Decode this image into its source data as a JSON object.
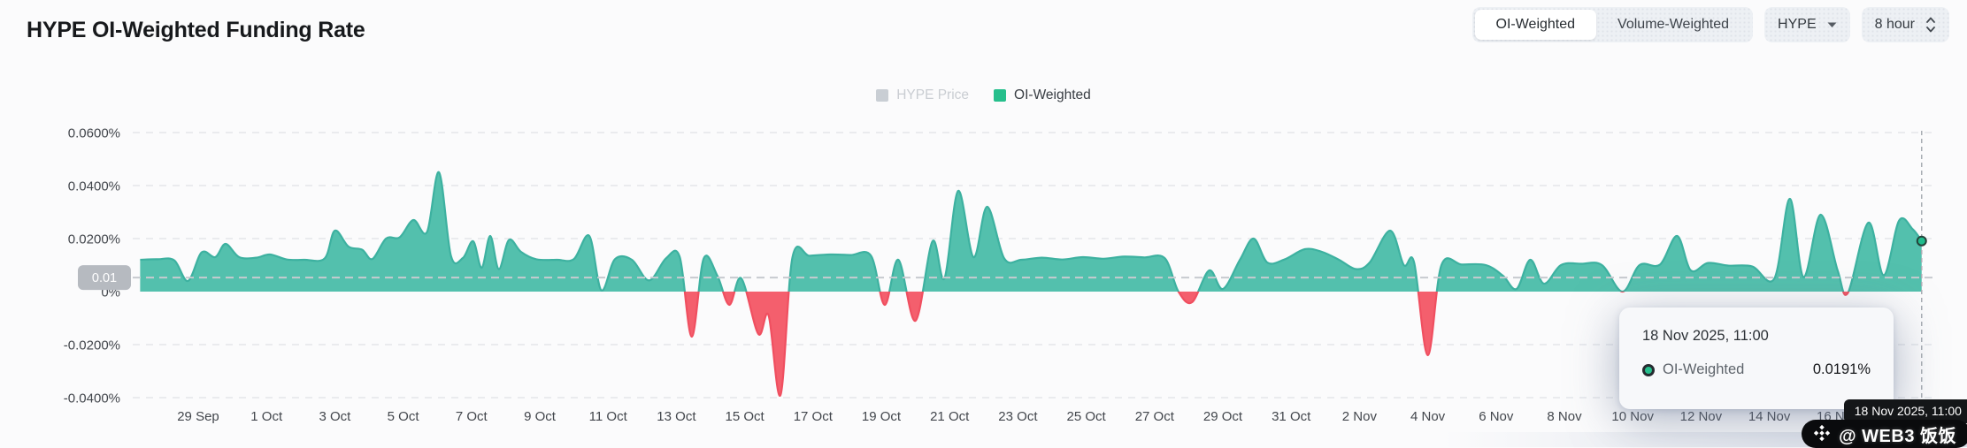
{
  "header": {
    "title": "HYPE OI-Weighted Funding Rate",
    "toggle_options": [
      "OI-Weighted",
      "Volume-Weighted"
    ],
    "active_option": "OI-Weighted",
    "symbol": "HYPE",
    "interval": "8 hour"
  },
  "legend": {
    "items": [
      {
        "label": "HYPE Price",
        "color": "#c9ced4",
        "disabled": true
      },
      {
        "label": "OI-Weighted",
        "color": "#26bf8c",
        "disabled": false
      }
    ]
  },
  "tooltip": {
    "title": "18 Nov 2025, 11:00",
    "series_label": "OI-Weighted",
    "value": "0.0191%"
  },
  "watermark": {
    "text": "@ WEB3 饭饭"
  },
  "colors": {
    "positive": "#53c0ad",
    "positive_stroke": "#3db1a0",
    "negative": "#f45f6d",
    "negative_stroke": "#f04f60",
    "grid": "#e4e6ea",
    "axis_text": "#42464c",
    "avg_line": "#c7cacf",
    "avg_badge": "#b6bac0",
    "crosshair": "#a8adb3",
    "end_dot": "#1fbd8d"
  },
  "chart_data": {
    "type": "area",
    "title": "HYPE OI-Weighted Funding Rate",
    "series_name": "OI-Weighted",
    "unit": "%",
    "interval": "8 hour",
    "ylim": [
      -0.048,
      0.066
    ],
    "y_ticks": [
      {
        "value": 0.06,
        "label": "0.0600%"
      },
      {
        "value": 0.04,
        "label": "0.0400%"
      },
      {
        "value": 0.02,
        "label": "0.0200%"
      },
      {
        "value": 0.0,
        "label": "0%"
      },
      {
        "value": -0.02,
        "label": "-0.0200%"
      },
      {
        "value": -0.04,
        "label": "-0.0400%"
      }
    ],
    "average_line": {
      "label": "0.01",
      "value": 0.0053
    },
    "crosshair": {
      "day": 51.46,
      "label": "18 Nov 2025, 11:00",
      "value": 0.0191
    },
    "x_ticks": [
      {
        "day": 1,
        "label": "29 Sep"
      },
      {
        "day": 3,
        "label": "1 Oct"
      },
      {
        "day": 5,
        "label": "3 Oct"
      },
      {
        "day": 7,
        "label": "5 Oct"
      },
      {
        "day": 9,
        "label": "7 Oct"
      },
      {
        "day": 11,
        "label": "9 Oct"
      },
      {
        "day": 13,
        "label": "11 Oct"
      },
      {
        "day": 15,
        "label": "13 Oct"
      },
      {
        "day": 17,
        "label": "15 Oct"
      },
      {
        "day": 19,
        "label": "17 Oct"
      },
      {
        "day": 21,
        "label": "19 Oct"
      },
      {
        "day": 23,
        "label": "21 Oct"
      },
      {
        "day": 25,
        "label": "23 Oct"
      },
      {
        "day": 27,
        "label": "25 Oct"
      },
      {
        "day": 29,
        "label": "27 Oct"
      },
      {
        "day": 31,
        "label": "29 Oct"
      },
      {
        "day": 33,
        "label": "31 Oct"
      },
      {
        "day": 35,
        "label": "2 Nov"
      },
      {
        "day": 37,
        "label": "4 Nov"
      },
      {
        "day": 39,
        "label": "6 Nov"
      },
      {
        "day": 41,
        "label": "8 Nov"
      },
      {
        "day": 43,
        "label": "10 Nov"
      },
      {
        "day": 45,
        "label": "12 Nov"
      },
      {
        "day": 47,
        "label": "14 Nov"
      },
      {
        "day": 49,
        "label": "16 Nov"
      }
    ],
    "points": [
      [
        -0.7,
        0.012
      ],
      [
        -0.2,
        0.0122
      ],
      [
        0.3,
        0.0118
      ],
      [
        0.7,
        0.004
      ],
      [
        1.1,
        0.0148
      ],
      [
        1.5,
        0.013
      ],
      [
        1.8,
        0.018
      ],
      [
        2.2,
        0.013
      ],
      [
        2.7,
        0.0128
      ],
      [
        3.1,
        0.014
      ],
      [
        3.6,
        0.0121
      ],
      [
        4.1,
        0.012
      ],
      [
        4.7,
        0.0125
      ],
      [
        5.0,
        0.023
      ],
      [
        5.4,
        0.017
      ],
      [
        5.8,
        0.0158
      ],
      [
        6.1,
        0.0123
      ],
      [
        6.5,
        0.02
      ],
      [
        6.9,
        0.0205
      ],
      [
        7.3,
        0.027
      ],
      [
        7.7,
        0.0225
      ],
      [
        8.05,
        0.045
      ],
      [
        8.4,
        0.0135
      ],
      [
        8.75,
        0.0127
      ],
      [
        9.05,
        0.019
      ],
      [
        9.3,
        0.009
      ],
      [
        9.55,
        0.021
      ],
      [
        9.8,
        0.0085
      ],
      [
        10.1,
        0.0195
      ],
      [
        10.45,
        0.015
      ],
      [
        10.9,
        0.0122
      ],
      [
        11.5,
        0.012
      ],
      [
        12.0,
        0.0123
      ],
      [
        12.45,
        0.021
      ],
      [
        12.8,
        0.0005
      ],
      [
        13.2,
        0.0122
      ],
      [
        13.7,
        0.012
      ],
      [
        14.2,
        0.0042
      ],
      [
        14.7,
        0.0126
      ],
      [
        15.1,
        0.013
      ],
      [
        15.45,
        -0.017
      ],
      [
        15.8,
        0.0125
      ],
      [
        16.2,
        0.006
      ],
      [
        16.55,
        -0.005
      ],
      [
        16.9,
        0.005
      ],
      [
        17.4,
        -0.016
      ],
      [
        17.7,
        -0.009
      ],
      [
        18.05,
        -0.039
      ],
      [
        18.4,
        0.013
      ],
      [
        18.9,
        0.0135
      ],
      [
        19.5,
        0.014
      ],
      [
        20.1,
        0.0138
      ],
      [
        20.7,
        0.0135
      ],
      [
        21.1,
        -0.005
      ],
      [
        21.5,
        0.012
      ],
      [
        22.0,
        -0.011
      ],
      [
        22.5,
        0.019
      ],
      [
        22.85,
        0.005
      ],
      [
        23.25,
        0.038
      ],
      [
        23.7,
        0.013
      ],
      [
        24.1,
        0.032
      ],
      [
        24.6,
        0.0125
      ],
      [
        25.1,
        0.012
      ],
      [
        25.7,
        0.0128
      ],
      [
        26.3,
        0.0121
      ],
      [
        26.9,
        0.013
      ],
      [
        27.5,
        0.0124
      ],
      [
        28.1,
        0.0132
      ],
      [
        28.7,
        0.0129
      ],
      [
        29.3,
        0.0126
      ],
      [
        29.7,
        0.0
      ],
      [
        30.1,
        -0.004
      ],
      [
        30.6,
        0.008
      ],
      [
        31.0,
        0.001
      ],
      [
        31.5,
        0.012
      ],
      [
        31.9,
        0.02
      ],
      [
        32.3,
        0.011
      ],
      [
        32.8,
        0.0121
      ],
      [
        33.4,
        0.016
      ],
      [
        33.9,
        0.015
      ],
      [
        34.4,
        0.012
      ],
      [
        34.9,
        0.0085
      ],
      [
        35.3,
        0.011
      ],
      [
        35.9,
        0.023
      ],
      [
        36.3,
        0.01
      ],
      [
        36.6,
        0.011
      ],
      [
        37.0,
        -0.024
      ],
      [
        37.4,
        0.01
      ],
      [
        38.0,
        0.0102
      ],
      [
        38.7,
        0.01
      ],
      [
        39.2,
        0.006
      ],
      [
        39.6,
        0.001
      ],
      [
        40.0,
        0.012
      ],
      [
        40.4,
        0.003
      ],
      [
        40.9,
        0.01
      ],
      [
        41.5,
        0.0105
      ],
      [
        42.1,
        0.01
      ],
      [
        42.7,
        0.0
      ],
      [
        43.2,
        0.01
      ],
      [
        43.8,
        0.0102
      ],
      [
        44.3,
        0.021
      ],
      [
        44.7,
        0.008
      ],
      [
        45.2,
        0.0108
      ],
      [
        45.8,
        0.0098
      ],
      [
        46.5,
        0.0095
      ],
      [
        47.15,
        0.005
      ],
      [
        47.6,
        0.035
      ],
      [
        48.0,
        0.0055
      ],
      [
        48.5,
        0.029
      ],
      [
        49.0,
        0.008
      ],
      [
        49.3,
        -0.0005
      ],
      [
        49.9,
        0.026
      ],
      [
        50.35,
        0.0062
      ],
      [
        50.8,
        0.0268
      ],
      [
        51.2,
        0.0235
      ],
      [
        51.46,
        0.0191
      ]
    ]
  }
}
